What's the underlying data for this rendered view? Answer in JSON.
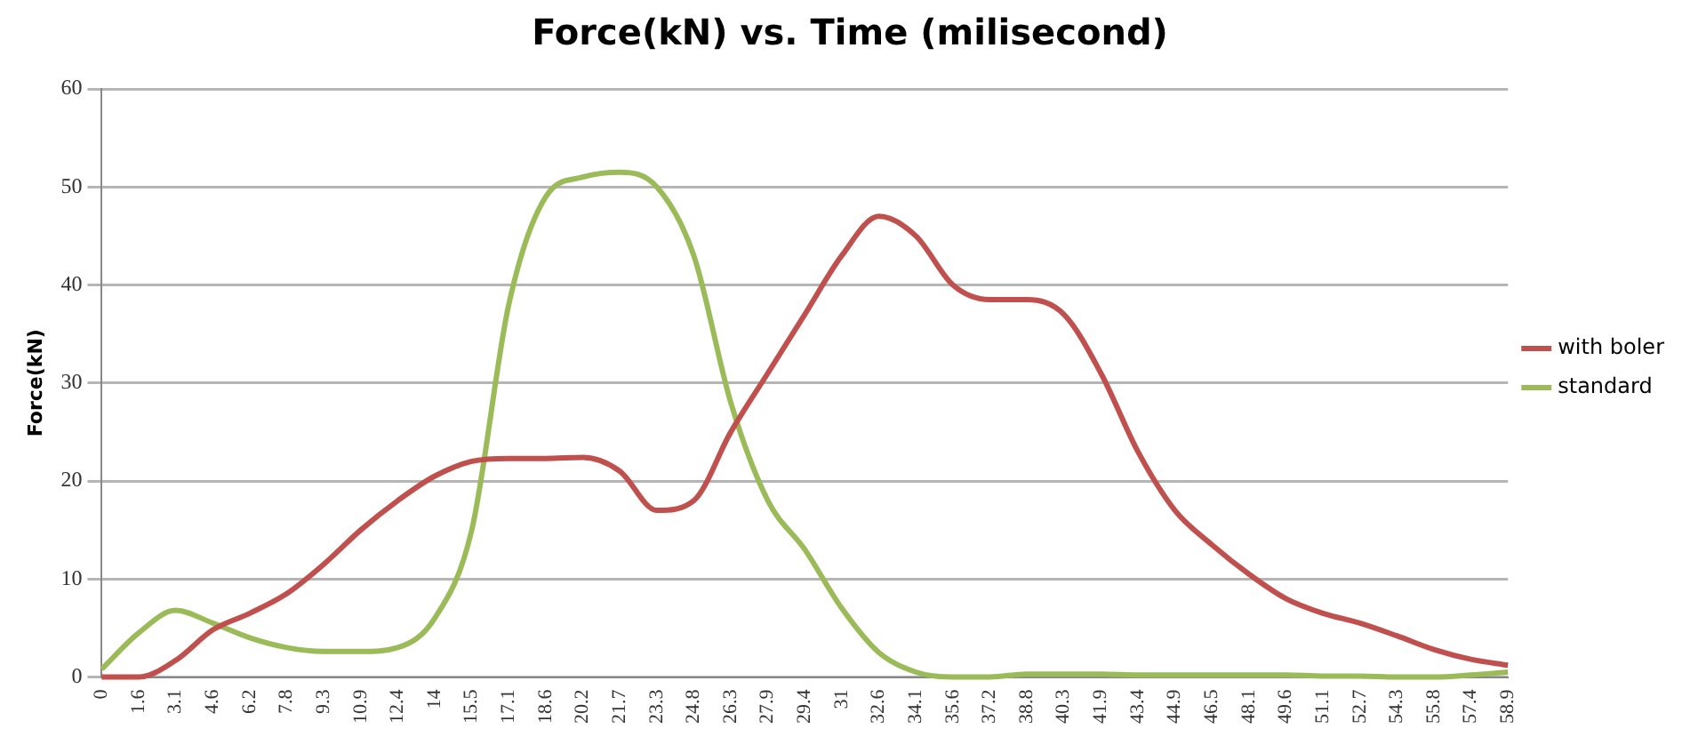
{
  "chart_data": {
    "type": "line",
    "title": "Force(kN) vs. Time (milisecond)",
    "ylabel": "Force(kN)",
    "categories": [
      "0",
      "1.6",
      "3.1",
      "4.6",
      "6.2",
      "7.8",
      "9.3",
      "10.9",
      "12.4",
      "14",
      "15.5",
      "17.1",
      "18.6",
      "20.2",
      "21.7",
      "23.3",
      "24.8",
      "26.3",
      "27.9",
      "29.4",
      "31",
      "32.6",
      "34.1",
      "35.6",
      "37.2",
      "38.8",
      "40.3",
      "41.9",
      "43.4",
      "44.9",
      "46.5",
      "48.1",
      "49.6",
      "51.1",
      "52.7",
      "54.3",
      "55.8",
      "57.4",
      "58.9"
    ],
    "series": [
      {
        "name": "with boler",
        "color": "#c0504d",
        "values": [
          0,
          0,
          1.7,
          4.8,
          6.5,
          8.5,
          11.5,
          15,
          18,
          20.5,
          22,
          22.3,
          22.3,
          22.4,
          21,
          17,
          18,
          25,
          31,
          37,
          43,
          47,
          45,
          40,
          38.5,
          38.5,
          37,
          31,
          23,
          17,
          13.5,
          10.5,
          8,
          6.5,
          5.5,
          4.2,
          2.8,
          1.8,
          1.2
        ]
      },
      {
        "name": "standard",
        "color": "#9bbb59",
        "values": [
          0.8,
          4.5,
          6.8,
          5.5,
          4,
          3,
          2.6,
          2.6,
          3,
          6,
          15,
          38,
          49,
          51,
          51.5,
          50,
          43,
          28,
          18,
          13,
          7,
          2.5,
          0.5,
          0,
          0,
          0.3,
          0.3,
          0.3,
          0.2,
          0.2,
          0.2,
          0.2,
          0.2,
          0.1,
          0.1,
          0,
          0,
          0.2,
          0.5
        ]
      }
    ],
    "ylim": [
      0,
      60
    ],
    "yticks": [
      0,
      10,
      20,
      30,
      40,
      50,
      60
    ],
    "grid": "y",
    "legend": "right",
    "marker": "none",
    "line_style": "solid"
  }
}
